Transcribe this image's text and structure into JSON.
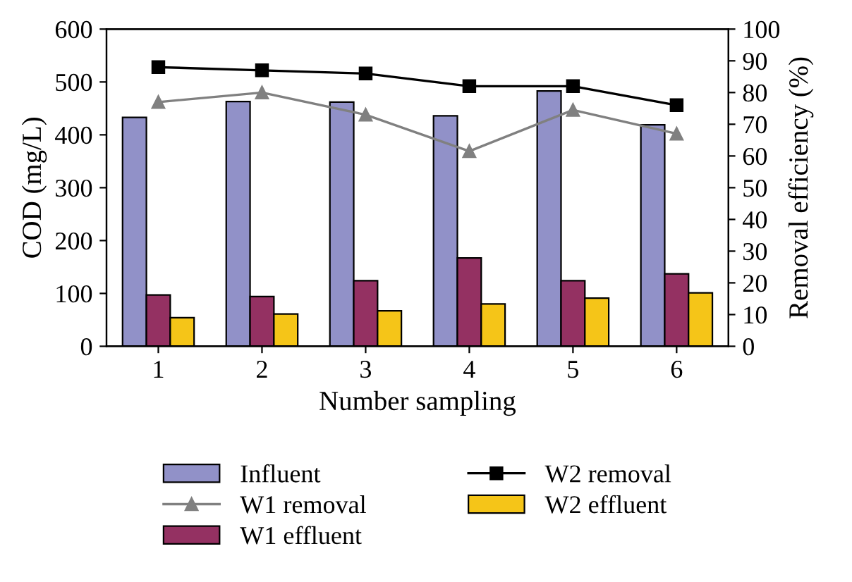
{
  "chart_data": {
    "type": "bar",
    "xlabel": "Number sampling",
    "ylabel": "COD (mg/L)",
    "y2label": "Removal efficiency (%)",
    "categories": [
      "1",
      "2",
      "3",
      "4",
      "5",
      "6"
    ],
    "ylim": [
      0,
      600
    ],
    "yticks": [
      0,
      100,
      200,
      300,
      400,
      500,
      600
    ],
    "y2lim": [
      0,
      100
    ],
    "y2ticks": [
      0,
      10,
      20,
      30,
      40,
      50,
      60,
      70,
      80,
      90,
      100
    ],
    "grid": false,
    "legend": "bottom",
    "series": [
      {
        "name": "Influent",
        "color": "#9191c8",
        "values": [
          433,
          463,
          462,
          436,
          483,
          419
        ]
      },
      {
        "name": "W1 removal",
        "type": "line",
        "axis": "y2",
        "color": "#808080",
        "marker": "triangle",
        "values": [
          77,
          80,
          73,
          61.5,
          74.5,
          67
        ]
      },
      {
        "name": "W1 effluent",
        "color": "#943162",
        "values": [
          97,
          94,
          124,
          167,
          124,
          137
        ]
      },
      {
        "name": "W2 removal",
        "type": "line",
        "axis": "y2",
        "color": "#000000",
        "marker": "square",
        "values": [
          88,
          87,
          86,
          82,
          82,
          76
        ]
      },
      {
        "name": "W2 effluent",
        "color": "#f5c518",
        "values": [
          54,
          61,
          67,
          80,
          91,
          101
        ]
      }
    ]
  }
}
